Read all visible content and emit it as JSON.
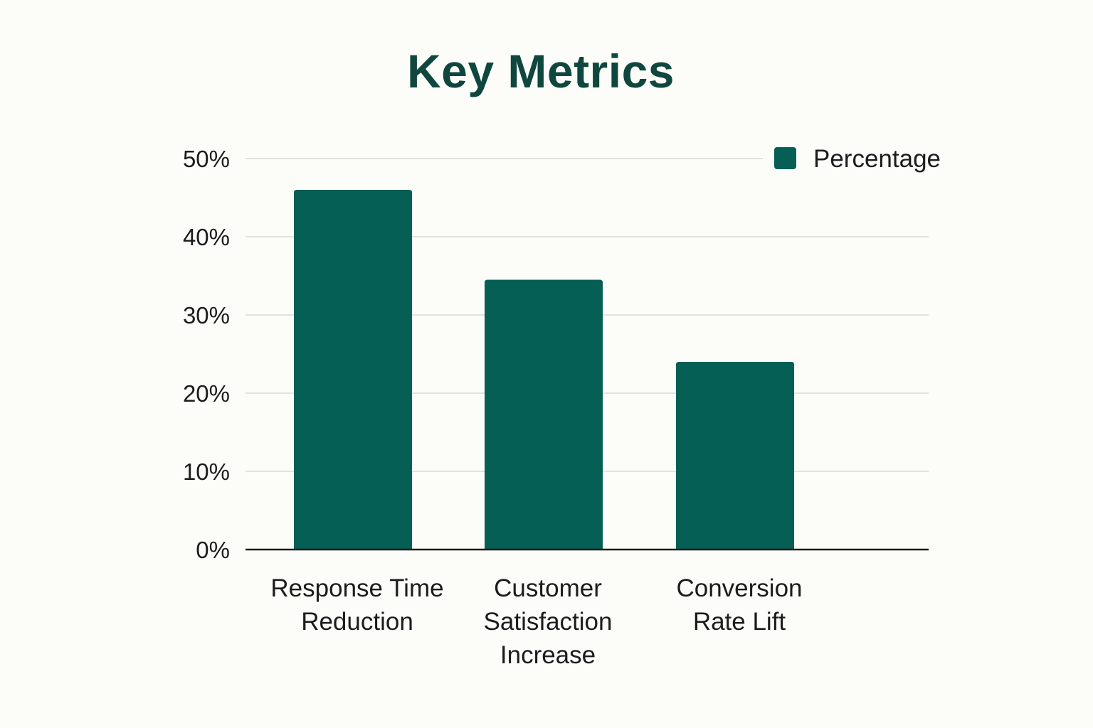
{
  "chart_data": {
    "type": "bar",
    "title": "Key Metrics",
    "xlabel": "",
    "ylabel": "",
    "categories": [
      [
        "Response Time",
        "Reduction"
      ],
      [
        "Customer",
        "Satisfaction",
        "Increase"
      ],
      [
        "Conversion",
        "Rate Lift"
      ]
    ],
    "series": [
      {
        "name": "Percentage",
        "values": [
          46,
          34.5,
          24
        ]
      }
    ],
    "ylim": [
      0,
      50
    ],
    "yticks": [
      0,
      10,
      20,
      30,
      40,
      50
    ],
    "ytick_labels": [
      "0%",
      "10%",
      "20%",
      "30%",
      "40%",
      "50%"
    ],
    "grid": true,
    "legend_position": "top-right",
    "colors": {
      "bar": "#065f55",
      "title": "#0f473e",
      "grid": "#d9d9d5",
      "axis": "#1a1a1a"
    }
  }
}
